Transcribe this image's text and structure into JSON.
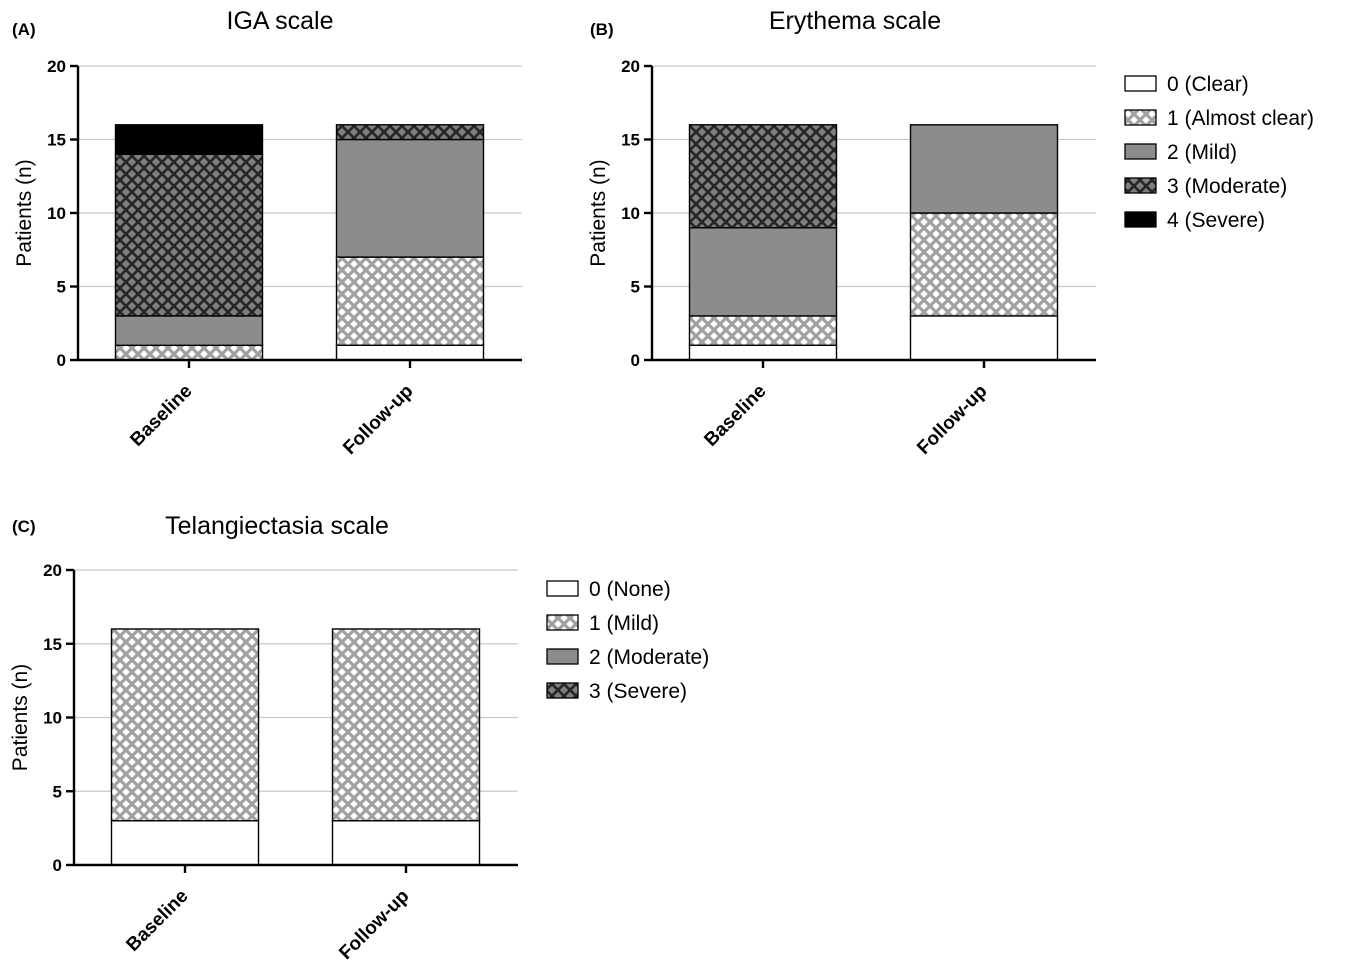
{
  "chart_data": [
    {
      "type": "bar",
      "stacked": true,
      "panel": "(A)",
      "title": "IGA scale",
      "ylabel": "Patients (n)",
      "xlabel": "",
      "ylim": [
        0,
        20
      ],
      "yticks": [
        0,
        5,
        10,
        15,
        20
      ],
      "grid": true,
      "categories": [
        "Baseline",
        "Follow-up"
      ],
      "series": [
        {
          "name": "0 (Clear)",
          "values": [
            0,
            1
          ],
          "fill": "white"
        },
        {
          "name": "1 (Almost clear)",
          "values": [
            1,
            6
          ],
          "fill": "crosshatch-light"
        },
        {
          "name": "2 (Mild)",
          "values": [
            2,
            8
          ],
          "fill": "gray"
        },
        {
          "name": "3 (Moderate)",
          "values": [
            11,
            1
          ],
          "fill": "crosshatch-dark"
        },
        {
          "name": "4 (Severe)",
          "values": [
            2,
            0
          ],
          "fill": "black"
        }
      ],
      "legend": "right"
    },
    {
      "type": "bar",
      "stacked": true,
      "panel": "(B)",
      "title": "Erythema scale",
      "ylabel": "Patients (n)",
      "xlabel": "",
      "ylim": [
        0,
        20
      ],
      "yticks": [
        0,
        5,
        10,
        15,
        20
      ],
      "grid": true,
      "categories": [
        "Baseline",
        "Follow-up"
      ],
      "series": [
        {
          "name": "0 (Clear)",
          "values": [
            1,
            3
          ],
          "fill": "white"
        },
        {
          "name": "1 (Almost clear)",
          "values": [
            2,
            7
          ],
          "fill": "crosshatch-light"
        },
        {
          "name": "2 (Mild)",
          "values": [
            6,
            6
          ],
          "fill": "gray"
        },
        {
          "name": "3 (Moderate)",
          "values": [
            7,
            0
          ],
          "fill": "crosshatch-dark"
        },
        {
          "name": "4 (Severe)",
          "values": [
            0,
            0
          ],
          "fill": "black"
        }
      ],
      "legend_shared_with": "(A)"
    },
    {
      "type": "bar",
      "stacked": true,
      "panel": "(C)",
      "title": "Telangiectasia scale",
      "ylabel": "Patients (n)",
      "xlabel": "",
      "ylim": [
        0,
        20
      ],
      "yticks": [
        0,
        5,
        10,
        15,
        20
      ],
      "grid": true,
      "categories": [
        "Baseline",
        "Follow-up"
      ],
      "series": [
        {
          "name": "0 (None)",
          "values": [
            3,
            3
          ],
          "fill": "white"
        },
        {
          "name": "1 (Mild)",
          "values": [
            13,
            13
          ],
          "fill": "crosshatch-light"
        },
        {
          "name": "2 (Moderate)",
          "values": [
            0,
            0
          ],
          "fill": "gray"
        },
        {
          "name": "3 (Severe)",
          "values": [
            0,
            0
          ],
          "fill": "crosshatch-dark"
        }
      ],
      "legend": "right"
    }
  ],
  "colors": {
    "gray_fill": "#8c8c8c",
    "black_fill": "#000000",
    "white_fill": "#ffffff",
    "hatch_light_line": "#a0a0a0",
    "hatch_dark_bg": "#7f7f7f",
    "hatch_dark_line": "#262626",
    "grid": "#c8c8c8"
  }
}
